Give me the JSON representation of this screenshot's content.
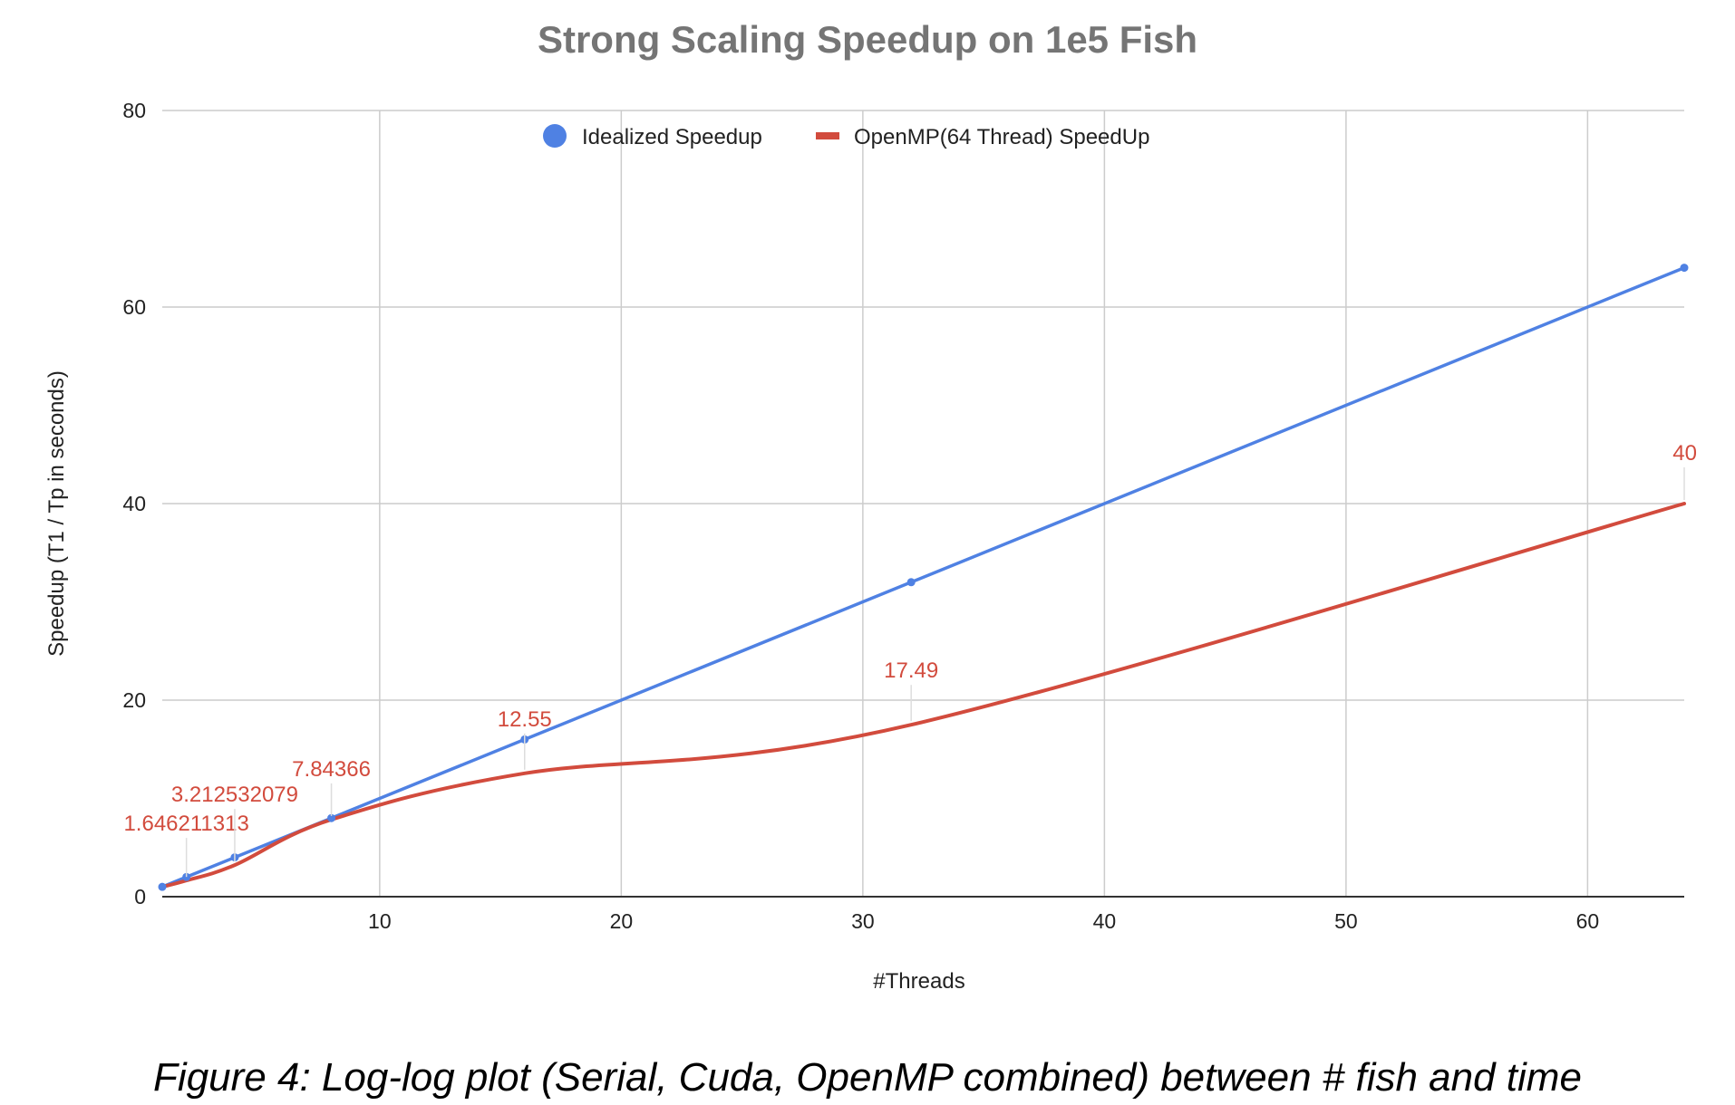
{
  "chart_data": {
    "type": "line",
    "title": "Strong Scaling Speedup on 1e5 Fish",
    "xlabel": "#Threads",
    "ylabel": "Speedup (T1 / Tp in seconds)",
    "xlim": [
      1,
      64
    ],
    "ylim": [
      0,
      80
    ],
    "x_ticks": [
      10,
      20,
      30,
      40,
      50,
      60
    ],
    "y_ticks": [
      0,
      20,
      40,
      60,
      80
    ],
    "grid": true,
    "legend_position": "top",
    "series": [
      {
        "name": "Idealized Speedup",
        "color": "#4f81e3",
        "marker": "circle",
        "x": [
          1,
          2,
          4,
          8,
          16,
          32,
          64
        ],
        "values": [
          1,
          2,
          4,
          8,
          16,
          32,
          64
        ]
      },
      {
        "name": "OpenMP(64 Thread) SpeedUp",
        "color": "#d24b3d",
        "marker": "line",
        "x": [
          1,
          2,
          4,
          8,
          16,
          32,
          64
        ],
        "values": [
          1,
          1.646211313,
          3.212532079,
          7.84366,
          12.55,
          17.49,
          40
        ],
        "data_labels": [
          "",
          "1.646211313",
          "3.212532079",
          "7.84366",
          "12.55",
          "17.49",
          "40"
        ]
      }
    ]
  },
  "caption": "Figure 4: Log-log plot (Serial, Cuda, OpenMP combined) between # fish and time"
}
